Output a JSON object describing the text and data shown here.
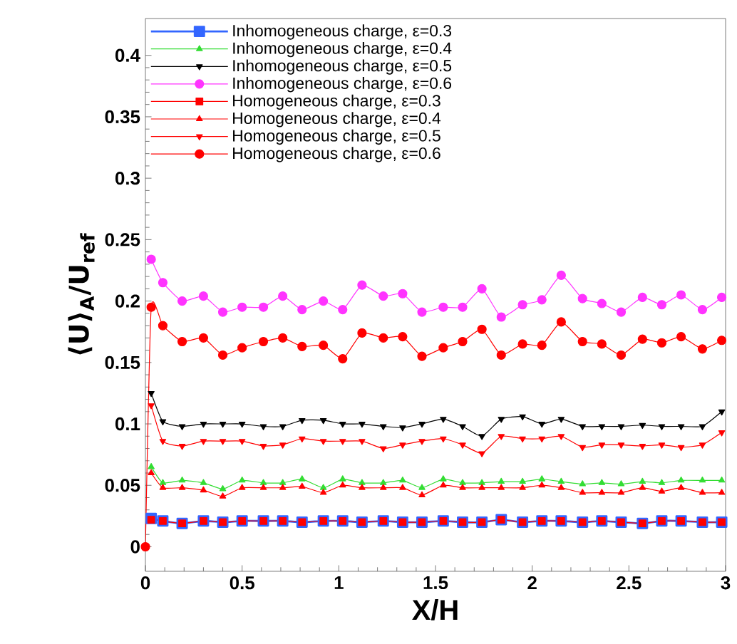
{
  "chart_data": {
    "type": "line",
    "xlabel": "X/H",
    "ylabel": "⟨U⟩$_{A}$/U$_{ref}$",
    "x": [
      0,
      0.03,
      0.09,
      0.19,
      0.3,
      0.4,
      0.5,
      0.61,
      0.71,
      0.81,
      0.92,
      1.02,
      1.12,
      1.23,
      1.33,
      1.43,
      1.54,
      1.64,
      1.74,
      1.84,
      1.95,
      2.05,
      2.15,
      2.26,
      2.36,
      2.46,
      2.57,
      2.67,
      2.77,
      2.88,
      2.98
    ],
    "series": [
      {
        "name": "Inhomogeneous charge, ε=0.3",
        "color": "#3366ff",
        "marker": "square",
        "values": [
          null,
          0.023,
          0.021,
          0.019,
          0.021,
          0.02,
          0.021,
          0.021,
          0.021,
          0.02,
          0.021,
          0.021,
          0.02,
          0.021,
          0.02,
          0.02,
          0.021,
          0.02,
          0.02,
          0.022,
          0.02,
          0.021,
          0.021,
          0.02,
          0.021,
          0.02,
          0.019,
          0.021,
          0.021,
          0.02,
          0.02
        ]
      },
      {
        "name": "Inhomogeneous charge, ε=0.4",
        "color": "#33dd33",
        "marker": "triangle",
        "values": [
          null,
          0.065,
          0.052,
          0.054,
          0.052,
          0.047,
          0.054,
          0.052,
          0.052,
          0.055,
          0.048,
          0.055,
          0.052,
          0.052,
          0.054,
          0.048,
          0.055,
          0.052,
          0.052,
          0.053,
          0.053,
          0.055,
          0.053,
          0.051,
          0.052,
          0.051,
          0.053,
          0.052,
          0.054,
          0.054,
          0.054
        ]
      },
      {
        "name": "Inhomogeneous charge, ε=0.5",
        "color": "#000000",
        "marker": "triangle-down",
        "values": [
          null,
          0.125,
          0.102,
          0.098,
          0.1,
          0.1,
          0.1,
          0.098,
          0.098,
          0.103,
          0.103,
          0.1,
          0.1,
          0.098,
          0.097,
          0.1,
          0.104,
          0.098,
          0.09,
          0.104,
          0.106,
          0.1,
          0.104,
          0.098,
          0.098,
          0.098,
          0.099,
          0.098,
          0.098,
          0.098,
          0.11
        ]
      },
      {
        "name": "Inhomogeneous charge, ε=0.6",
        "color": "#ff33ff",
        "marker": "circle",
        "values": [
          null,
          0.234,
          0.215,
          0.2,
          0.204,
          0.191,
          0.195,
          0.195,
          0.204,
          0.193,
          0.2,
          0.193,
          0.213,
          0.204,
          0.206,
          0.191,
          0.195,
          0.195,
          0.21,
          0.187,
          0.197,
          0.201,
          0.221,
          0.202,
          0.198,
          0.191,
          0.203,
          0.197,
          0.205,
          0.193,
          0.203
        ]
      },
      {
        "name": "Homogeneous charge, ε=0.3",
        "color": "#ff0000",
        "marker": "square",
        "values": [
          null,
          0.022,
          0.021,
          0.019,
          0.021,
          0.02,
          0.021,
          0.021,
          0.021,
          0.02,
          0.021,
          0.021,
          0.02,
          0.021,
          0.02,
          0.02,
          0.021,
          0.02,
          0.02,
          0.022,
          0.02,
          0.021,
          0.021,
          0.02,
          0.021,
          0.02,
          0.019,
          0.021,
          0.021,
          0.02,
          0.02
        ]
      },
      {
        "name": "Homogeneous charge, ε=0.4",
        "color": "#ff0000",
        "marker": "triangle",
        "values": [
          null,
          0.06,
          0.048,
          0.048,
          0.046,
          0.041,
          0.048,
          0.048,
          0.048,
          0.049,
          0.044,
          0.05,
          0.048,
          0.048,
          0.048,
          0.042,
          0.05,
          0.048,
          0.048,
          0.048,
          0.048,
          0.05,
          0.048,
          0.044,
          0.044,
          0.044,
          0.048,
          0.045,
          0.048,
          0.044,
          0.044
        ]
      },
      {
        "name": "Homogeneous charge, ε=0.5",
        "color": "#ff0000",
        "marker": "triangle-down",
        "values": [
          null,
          0.115,
          0.086,
          0.082,
          0.086,
          0.086,
          0.086,
          0.082,
          0.083,
          0.088,
          0.086,
          0.086,
          0.086,
          0.08,
          0.083,
          0.086,
          0.088,
          0.083,
          0.076,
          0.09,
          0.088,
          0.088,
          0.09,
          0.081,
          0.083,
          0.083,
          0.082,
          0.083,
          0.081,
          0.083,
          0.093
        ]
      },
      {
        "name": "Homogeneous charge, ε=0.6",
        "color": "#ff0000",
        "marker": "circle",
        "values": [
          0,
          0.195,
          0.18,
          0.167,
          0.17,
          0.156,
          0.162,
          0.167,
          0.17,
          0.163,
          0.164,
          0.153,
          0.174,
          0.17,
          0.171,
          0.155,
          0.162,
          0.167,
          0.177,
          0.156,
          0.165,
          0.164,
          0.183,
          0.167,
          0.165,
          0.156,
          0.169,
          0.166,
          0.171,
          0.161,
          0.168
        ]
      }
    ],
    "xlim": [
      0,
      3
    ],
    "ylim": [
      -0.02,
      0.43
    ],
    "xticks": [
      0,
      0.5,
      1,
      1.5,
      2,
      2.5,
      3
    ],
    "yticks": [
      0,
      0.05,
      0.1,
      0.15,
      0.2,
      0.25,
      0.3,
      0.35,
      0.4
    ],
    "legend": "top left",
    "grid": false,
    "line_style": "solid"
  }
}
